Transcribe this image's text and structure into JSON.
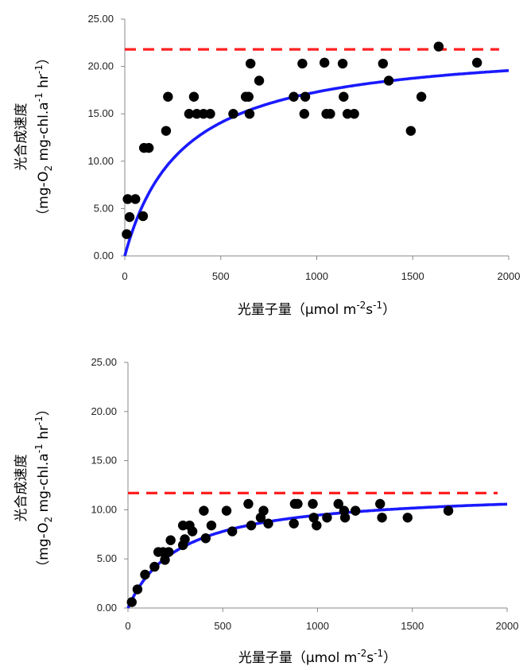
{
  "chart_data": [
    {
      "type": "scatter",
      "xlabel": "光量子量（μmol m-2s-1）",
      "xlabel_parts": {
        "main": "光量子量（μmol m",
        "sup1": "-2",
        "mid": "s",
        "sup2": "-1",
        "end": "）"
      },
      "ylabel_line1": "光合成速度",
      "ylabel_line2_parts": {
        "a": "（mg-O",
        "sub": "2",
        "b": " mg-chl.a",
        "sup1": "-1",
        "c": " hr",
        "sup2": "-1",
        "d": "）"
      },
      "xlim": [
        0,
        2000
      ],
      "ylim": [
        0,
        25
      ],
      "xticks": [
        "0",
        "500",
        "1000",
        "1500",
        "2000"
      ],
      "yticks": [
        "0.00",
        "5.00",
        "10.00",
        "15.00",
        "20.00",
        "25.00"
      ],
      "grid": false,
      "points": [
        [
          10,
          2.3
        ],
        [
          15,
          6.0
        ],
        [
          25,
          4.1
        ],
        [
          55,
          6.0
        ],
        [
          95,
          4.2
        ],
        [
          100,
          11.4
        ],
        [
          125,
          11.4
        ],
        [
          215,
          13.2
        ],
        [
          225,
          16.8
        ],
        [
          335,
          15.0
        ],
        [
          360,
          16.8
        ],
        [
          375,
          15.0
        ],
        [
          410,
          15.0
        ],
        [
          445,
          15.0
        ],
        [
          565,
          15.0
        ],
        [
          630,
          16.8
        ],
        [
          645,
          16.8
        ],
        [
          650,
          15.0
        ],
        [
          655,
          20.3
        ],
        [
          700,
          18.5
        ],
        [
          880,
          16.8
        ],
        [
          925,
          20.3
        ],
        [
          935,
          15.0
        ],
        [
          940,
          16.8
        ],
        [
          1040,
          20.4
        ],
        [
          1050,
          15.0
        ],
        [
          1070,
          15.0
        ],
        [
          1135,
          20.3
        ],
        [
          1140,
          16.8
        ],
        [
          1160,
          15.0
        ],
        [
          1195,
          15.0
        ],
        [
          1345,
          20.3
        ],
        [
          1375,
          18.5
        ],
        [
          1490,
          13.2
        ],
        [
          1545,
          16.8
        ],
        [
          1635,
          22.1
        ],
        [
          1835,
          20.4
        ]
      ],
      "series": [
        {
          "type": "line",
          "color": "#1a1aff",
          "style": "solid",
          "vmax": 22.5,
          "k": 300
        },
        {
          "type": "hline",
          "color": "#ff2020",
          "style": "dashed",
          "value": 21.8
        }
      ],
      "marker_color": "#000000"
    },
    {
      "type": "scatter",
      "xlabel": "光量子量（μmol m-2s-1）",
      "xlabel_parts": {
        "main": "光量子量（μmol m",
        "sup1": "-2",
        "mid": "s",
        "sup2": "-1",
        "end": "）"
      },
      "ylabel_line1": "光合成速度",
      "ylabel_line2_parts": {
        "a": "（mg-O",
        "sub": "2",
        "b": " mg-chl.a",
        "sup1": "-1",
        "c": " hr",
        "sup2": "-1",
        "d": "）"
      },
      "xlim": [
        0,
        2000
      ],
      "ylim": [
        0,
        25
      ],
      "xticks": [
        "0",
        "500",
        "1000",
        "1500",
        "2000"
      ],
      "yticks": [
        "0.00",
        "5.00",
        "10.00",
        "15.00",
        "20.00",
        "25.00"
      ],
      "grid": false,
      "points": [
        [
          20,
          0.6
        ],
        [
          50,
          1.9
        ],
        [
          90,
          3.4
        ],
        [
          140,
          4.2
        ],
        [
          160,
          5.7
        ],
        [
          185,
          5.7
        ],
        [
          195,
          4.9
        ],
        [
          215,
          5.7
        ],
        [
          225,
          6.9
        ],
        [
          290,
          8.4
        ],
        [
          290,
          6.4
        ],
        [
          300,
          7.0
        ],
        [
          325,
          8.4
        ],
        [
          340,
          7.8
        ],
        [
          400,
          9.9
        ],
        [
          410,
          7.1
        ],
        [
          440,
          8.4
        ],
        [
          520,
          9.9
        ],
        [
          550,
          7.8
        ],
        [
          635,
          10.6
        ],
        [
          650,
          8.4
        ],
        [
          700,
          9.2
        ],
        [
          715,
          9.9
        ],
        [
          740,
          8.6
        ],
        [
          875,
          8.6
        ],
        [
          880,
          10.6
        ],
        [
          895,
          10.6
        ],
        [
          975,
          10.6
        ],
        [
          980,
          9.2
        ],
        [
          995,
          8.4
        ],
        [
          1050,
          9.2
        ],
        [
          1110,
          10.6
        ],
        [
          1140,
          9.9
        ],
        [
          1145,
          9.2
        ],
        [
          1200,
          9.9
        ],
        [
          1330,
          10.6
        ],
        [
          1340,
          9.2
        ],
        [
          1475,
          9.2
        ],
        [
          1690,
          9.9
        ]
      ],
      "series": [
        {
          "type": "line",
          "color": "#1a1aff",
          "style": "solid",
          "vmax": 12.0,
          "k": 270
        },
        {
          "type": "hline",
          "color": "#ff2020",
          "style": "dashed",
          "value": 11.7
        }
      ],
      "marker_color": "#000000"
    }
  ]
}
